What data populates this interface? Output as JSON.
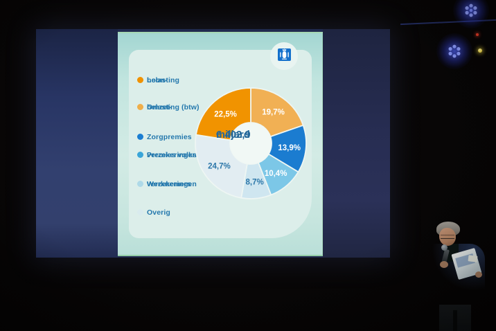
{
  "slide": {
    "logo_icon": "rijksoverheid-emblem",
    "legend": [
      {
        "line1": "Loon-",
        "line2": "belasting",
        "color": "#f09200"
      },
      {
        "line1": "Omzet-",
        "line2": "belasting (btw)",
        "color": "#efae4a"
      },
      {
        "line1": "Zorgpremies",
        "line2": "",
        "color": "#1b7ed2"
      },
      {
        "line1": "Premies volks-",
        "line2": "verzekeringen",
        "color": "#3aa5d8"
      },
      {
        "line1": "Werknemers",
        "line2": "verzekeringen",
        "color": "#aed9e8"
      },
      {
        "line1": "Overig",
        "line2": "",
        "color": "#d9ebee"
      }
    ]
  },
  "chart_data": {
    "type": "pie",
    "subtype": "donut",
    "center_label_lines": [
      "€ 402,9",
      "miljard"
    ],
    "start_angle_deg": 0,
    "direction": "clockwise",
    "legend_position": "left",
    "segments": [
      {
        "label": "Omzetbelasting (btw)",
        "value": 19.7,
        "display": "19,7%",
        "color": "#f1b054",
        "label_color": "#ffffff"
      },
      {
        "label": "Zorgpremies",
        "value": 13.9,
        "display": "13,9%",
        "color": "#1b7cd0",
        "label_color": "#ffffff"
      },
      {
        "label": "Premies volksverzekeringen",
        "value": 10.4,
        "display": "10,4%",
        "color": "#7cc7e7",
        "label_color": "#ffffff"
      },
      {
        "label": "Werknemersverzekeringen",
        "value": 8.7,
        "display": "8,7%",
        "color": "#cfe6f0",
        "label_color": "#2c77a9"
      },
      {
        "label": "Overig",
        "value": 24.7,
        "display": "24,7%",
        "color": "#e2edf2",
        "label_color": "#2c77a9"
      },
      {
        "label": "Loonbelasting",
        "value": 22.5,
        "display": "22,5%",
        "color": "#f19300",
        "label_color": "#ffffff"
      }
    ]
  },
  "stage": {
    "led_color": "#3b5bff",
    "indicator_red": "#e23b26",
    "indicator_yellow": "#f0d84a"
  }
}
